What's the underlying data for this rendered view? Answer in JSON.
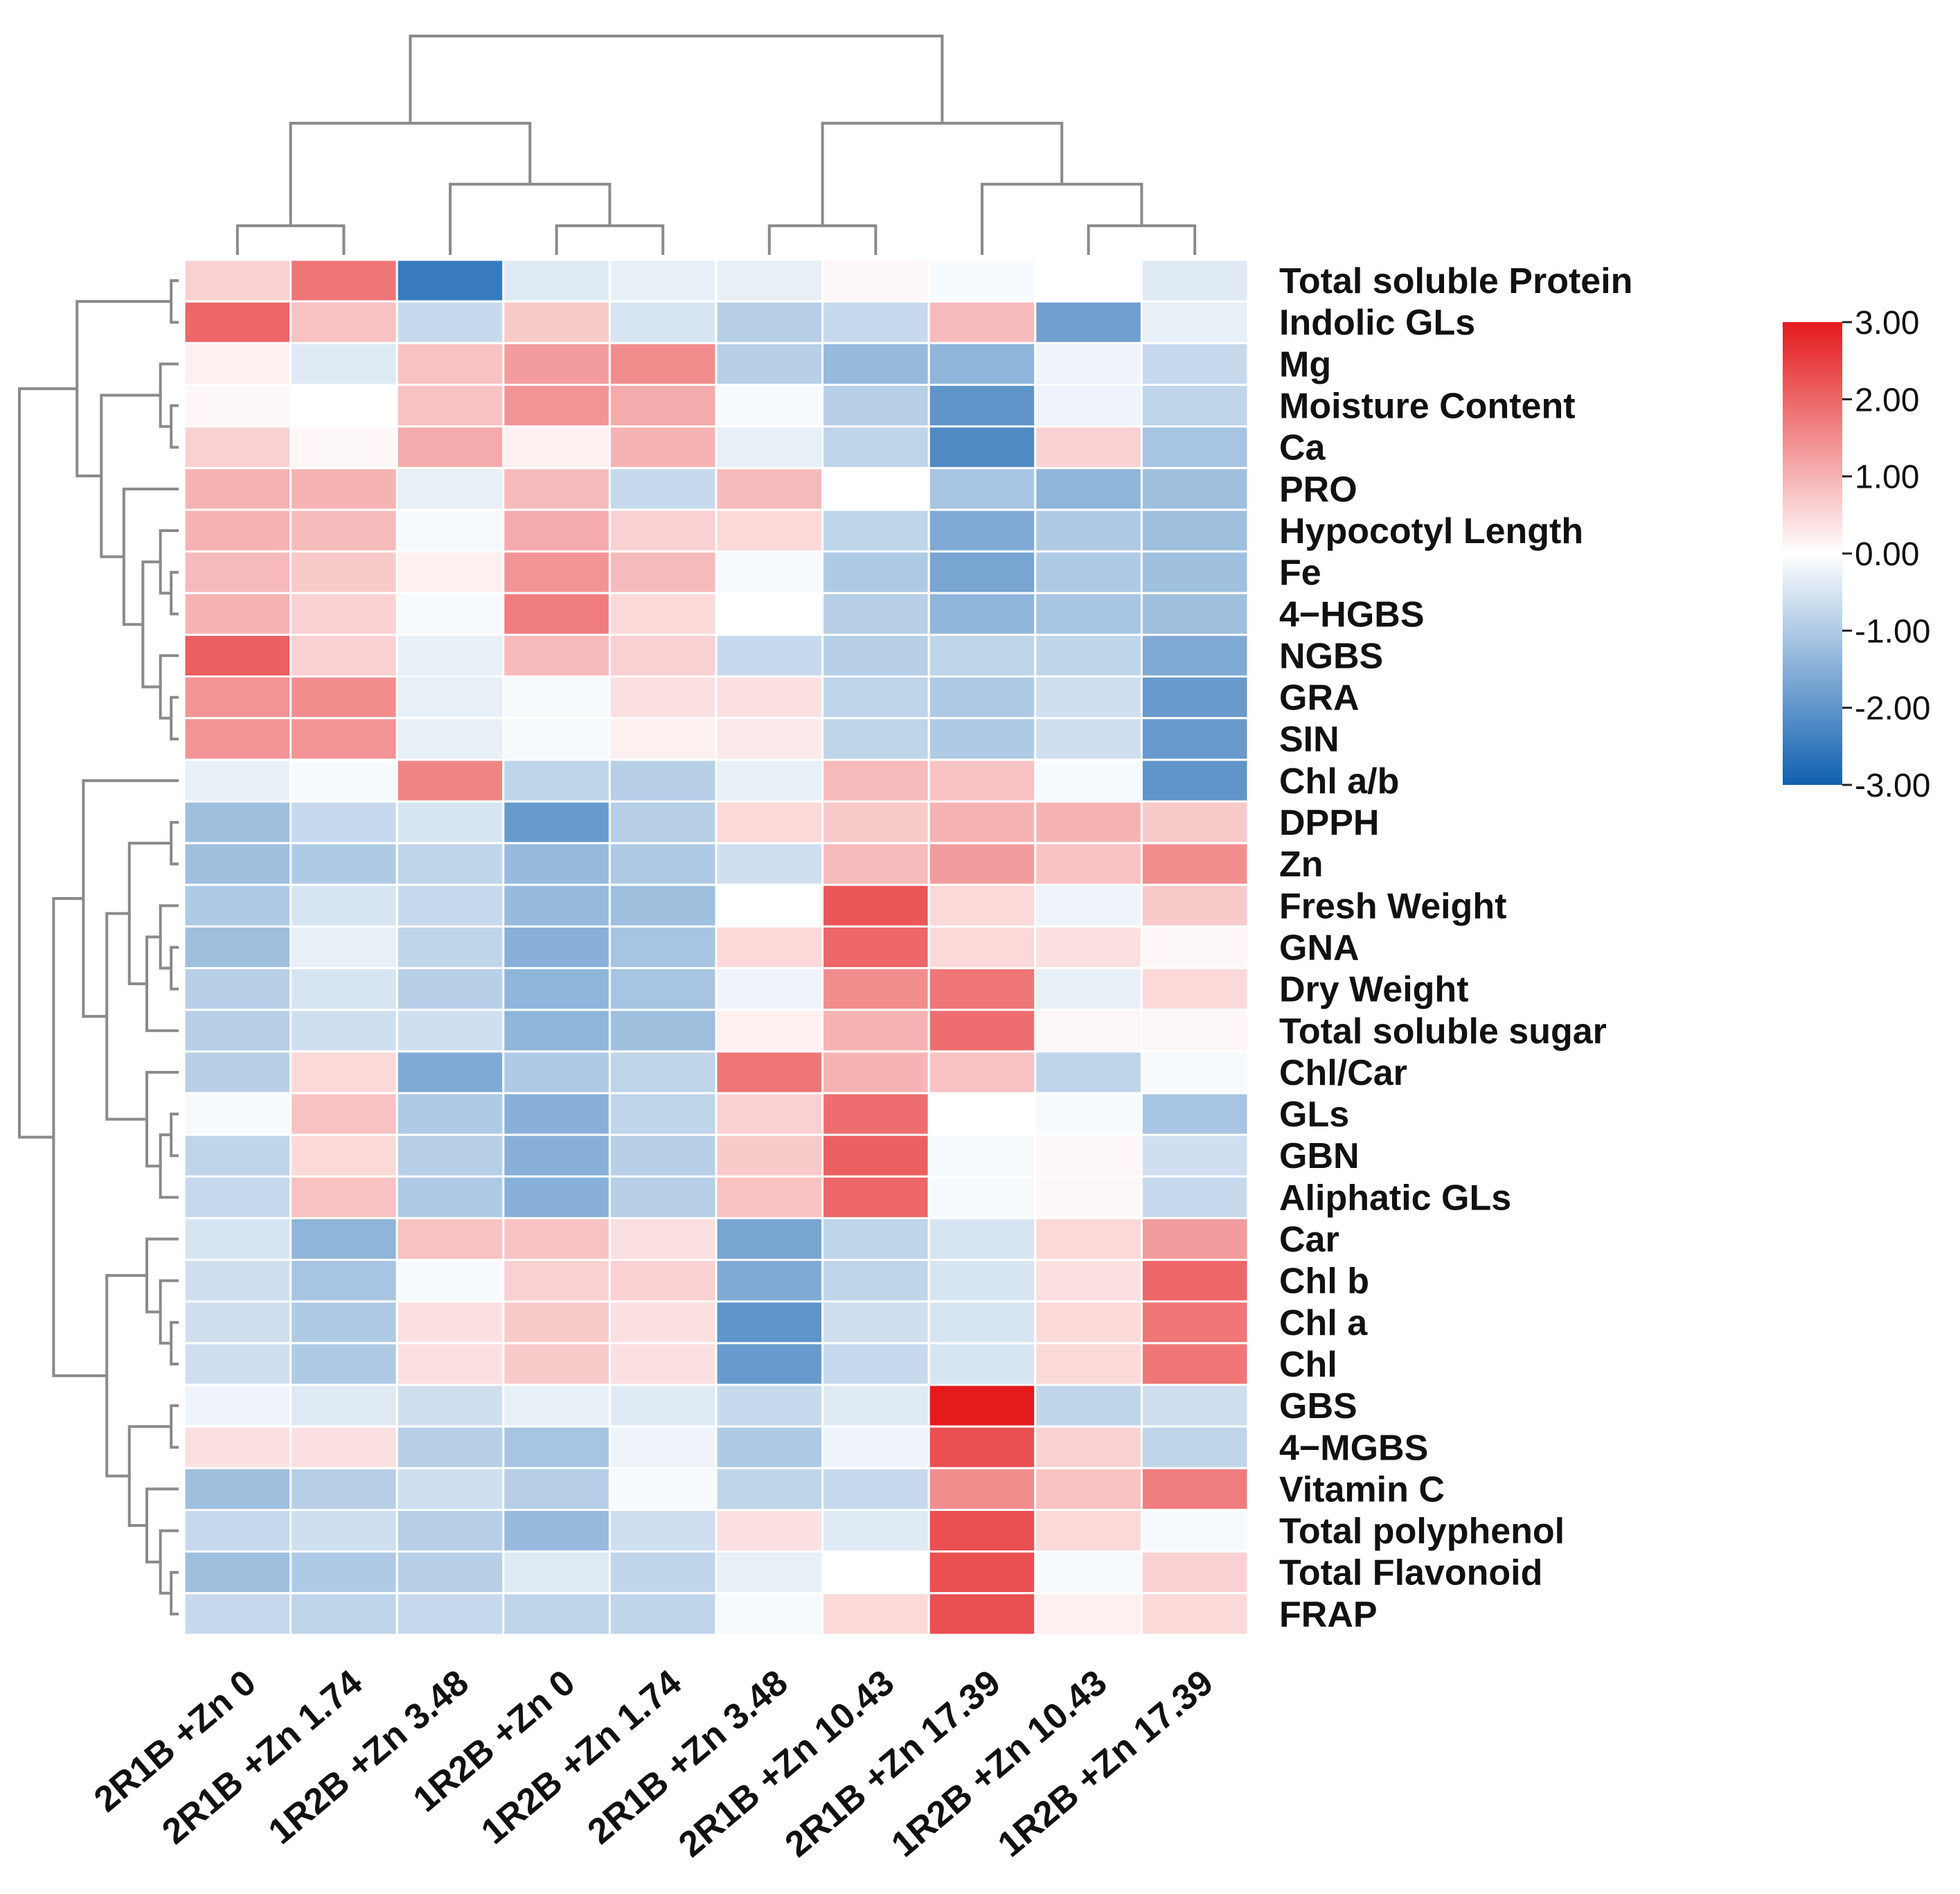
{
  "chart_data": {
    "type": "heatmap",
    "title": "",
    "columns": [
      "2R1B +Zn 0",
      "2R1B +Zn 1.74",
      "1R2B +Zn 3.48",
      "1R2B +Zn 0",
      "1R2B +Zn 1.74",
      "2R1B +Zn 3.48",
      "2R1B +Zn 10.43",
      "2R1B +Zn 17.39",
      "1R2B +Zn 10.43",
      "1R2B +Zn 17.39"
    ],
    "rows": [
      "Total soluble Protein",
      "Indolic GLs",
      "Mg",
      "Moisture Content",
      "Ca",
      "PRO",
      "Hypocotyl Length",
      "Fe",
      "4−HGBS",
      "NGBS",
      "GRA",
      "SIN",
      "Chl a/b",
      "DPPH",
      "Zn",
      "Fresh Weight",
      "GNA",
      "Dry Weight",
      "Total soluble sugar",
      "Chl/Car",
      "GLs",
      "GBN",
      "Aliphatic GLs",
      "Car",
      "Chl b",
      "Chl a",
      "Chl",
      "GBS",
      "4−MGBS",
      "Vitamin C",
      "Total polyphenol",
      "Total Flavonoid",
      "FRAP"
    ],
    "values": [
      [
        0.6,
        1.8,
        -2.5,
        -0.4,
        -0.3,
        -0.3,
        0.1,
        -0.1,
        0.0,
        -0.4
      ],
      [
        2.0,
        0.8,
        -0.7,
        0.7,
        -0.5,
        -0.9,
        -0.7,
        0.9,
        -1.8,
        -0.3
      ],
      [
        0.2,
        -0.4,
        0.8,
        1.3,
        1.5,
        -0.9,
        -1.3,
        -1.4,
        -0.2,
        -0.7
      ],
      [
        0.1,
        0.0,
        0.8,
        1.4,
        1.1,
        -0.1,
        -0.9,
        -2.0,
        -0.2,
        -0.8
      ],
      [
        0.6,
        0.1,
        1.1,
        0.2,
        1.0,
        -0.3,
        -0.8,
        -2.2,
        0.6,
        -1.1
      ],
      [
        1.0,
        1.0,
        -0.3,
        0.9,
        -0.7,
        0.9,
        0.0,
        -1.1,
        -1.4,
        -1.2
      ],
      [
        1.0,
        0.9,
        -0.1,
        1.1,
        0.6,
        0.5,
        -0.8,
        -1.6,
        -1.0,
        -1.2
      ],
      [
        0.9,
        0.7,
        0.2,
        1.4,
        0.9,
        -0.1,
        -1.0,
        -1.7,
        -1.0,
        -1.2
      ],
      [
        1.0,
        0.6,
        -0.1,
        1.7,
        0.5,
        0.0,
        -0.9,
        -1.4,
        -1.1,
        -1.2
      ],
      [
        2.1,
        0.6,
        -0.3,
        0.9,
        0.6,
        -0.7,
        -0.9,
        -0.8,
        -0.8,
        -1.6
      ],
      [
        1.4,
        1.5,
        -0.3,
        -0.1,
        0.4,
        0.4,
        -0.8,
        -1.0,
        -0.6,
        -1.9
      ],
      [
        1.4,
        1.4,
        -0.3,
        -0.1,
        0.2,
        0.3,
        -0.8,
        -1.0,
        -0.6,
        -1.9
      ],
      [
        -0.3,
        -0.1,
        1.6,
        -0.8,
        -0.9,
        -0.3,
        0.9,
        0.8,
        -0.1,
        -2.0
      ],
      [
        -1.2,
        -0.7,
        -0.5,
        -1.9,
        -0.9,
        0.5,
        0.7,
        1.0,
        1.0,
        0.7
      ],
      [
        -1.2,
        -1.0,
        -0.8,
        -1.3,
        -1.0,
        -0.6,
        0.9,
        1.3,
        0.8,
        1.5
      ],
      [
        -1.0,
        -0.5,
        -0.7,
        -1.3,
        -1.2,
        0.0,
        2.2,
        0.5,
        -0.2,
        0.7
      ],
      [
        -1.2,
        -0.3,
        -0.8,
        -1.5,
        -1.1,
        0.5,
        2.0,
        0.5,
        0.4,
        0.1
      ],
      [
        -0.9,
        -0.5,
        -0.9,
        -1.4,
        -1.1,
        -0.2,
        1.5,
        1.8,
        -0.3,
        0.5
      ],
      [
        -0.9,
        -0.6,
        -0.6,
        -1.4,
        -1.2,
        0.2,
        1.0,
        1.9,
        0.1,
        0.1
      ],
      [
        -0.9,
        0.5,
        -1.6,
        -1.0,
        -0.8,
        1.8,
        1.0,
        0.8,
        -0.8,
        -0.1
      ],
      [
        -0.1,
        0.8,
        -1.0,
        -1.5,
        -0.8,
        0.6,
        1.9,
        0.0,
        -0.1,
        -1.1
      ],
      [
        -0.8,
        0.5,
        -0.9,
        -1.5,
        -0.9,
        0.7,
        2.1,
        -0.1,
        0.1,
        -0.6
      ],
      [
        -0.7,
        0.8,
        -1.0,
        -1.5,
        -0.9,
        0.8,
        2.0,
        -0.1,
        0.1,
        -0.7
      ],
      [
        -0.5,
        -1.4,
        0.8,
        0.8,
        0.4,
        -1.7,
        -0.8,
        -0.5,
        0.5,
        1.3
      ],
      [
        -0.6,
        -1.1,
        -0.1,
        0.6,
        0.6,
        -1.6,
        -0.8,
        -0.5,
        0.4,
        2.0
      ],
      [
        -0.6,
        -1.0,
        0.4,
        0.7,
        0.4,
        -2.0,
        -0.6,
        -0.5,
        0.5,
        1.8
      ],
      [
        -0.6,
        -1.0,
        0.4,
        0.7,
        0.4,
        -1.9,
        -0.7,
        -0.5,
        0.5,
        1.8
      ],
      [
        -0.2,
        -0.4,
        -0.6,
        -0.3,
        -0.4,
        -0.7,
        -0.4,
        3.0,
        -0.8,
        -0.6
      ],
      [
        0.4,
        0.4,
        -0.9,
        -1.1,
        -0.2,
        -1.0,
        -0.2,
        2.3,
        0.6,
        -0.8
      ],
      [
        -1.2,
        -0.9,
        -0.6,
        -0.9,
        -0.1,
        -0.8,
        -0.7,
        1.5,
        0.8,
        1.7
      ],
      [
        -0.7,
        -0.6,
        -0.9,
        -1.3,
        -0.6,
        0.4,
        -0.4,
        2.3,
        0.5,
        -0.1
      ],
      [
        -1.2,
        -1.0,
        -0.9,
        -0.4,
        -0.8,
        -0.3,
        0.0,
        2.3,
        -0.1,
        0.6
      ],
      [
        -0.7,
        -0.8,
        -0.7,
        -0.8,
        -0.8,
        -0.1,
        0.5,
        2.3,
        0.2,
        0.5
      ]
    ],
    "color_scale": {
      "range": [
        -3.0,
        3.0
      ],
      "low_color": "#1060b0",
      "mid_color": "#ffffff",
      "high_color": "#e41a1c",
      "tick_labels": [
        "3.00",
        "2.00",
        "1.00",
        "0.00",
        "-1.00",
        "-2.00",
        "-3.00"
      ],
      "tick_values": [
        3,
        2,
        1,
        0,
        -1,
        -2,
        -3
      ],
      "placement": "right"
    },
    "column_dendrogram": {
      "merges": [
        [
          0,
          1
        ],
        [
          3,
          4
        ],
        [
          2,
          11
        ],
        [
          10,
          12
        ],
        [
          8,
          9
        ],
        [
          5,
          6
        ],
        [
          7,
          14
        ],
        [
          15,
          16
        ],
        [
          13,
          17
        ]
      ],
      "placement": "top"
    },
    "row_dendrogram": {
      "merges": [
        [
          0,
          1
        ],
        [
          3,
          4
        ],
        [
          2,
          34
        ],
        [
          7,
          8
        ],
        [
          6,
          36
        ],
        [
          10,
          11
        ],
        [
          9,
          38
        ],
        [
          37,
          39
        ],
        [
          5,
          40
        ],
        [
          35,
          41
        ],
        [
          33,
          42
        ],
        [
          16,
          17
        ],
        [
          15,
          44
        ],
        [
          18,
          45
        ],
        [
          13,
          14
        ],
        [
          46,
          47
        ],
        [
          20,
          21
        ],
        [
          22,
          49
        ],
        [
          19,
          50
        ],
        [
          48,
          51
        ],
        [
          12,
          52
        ],
        [
          25,
          26
        ],
        [
          24,
          54
        ],
        [
          23,
          55
        ],
        [
          27,
          28
        ],
        [
          31,
          32
        ],
        [
          30,
          58
        ],
        [
          29,
          59
        ],
        [
          57,
          60
        ],
        [
          56,
          61
        ],
        [
          53,
          62
        ],
        [
          43,
          63
        ]
      ],
      "placement": "left"
    }
  }
}
